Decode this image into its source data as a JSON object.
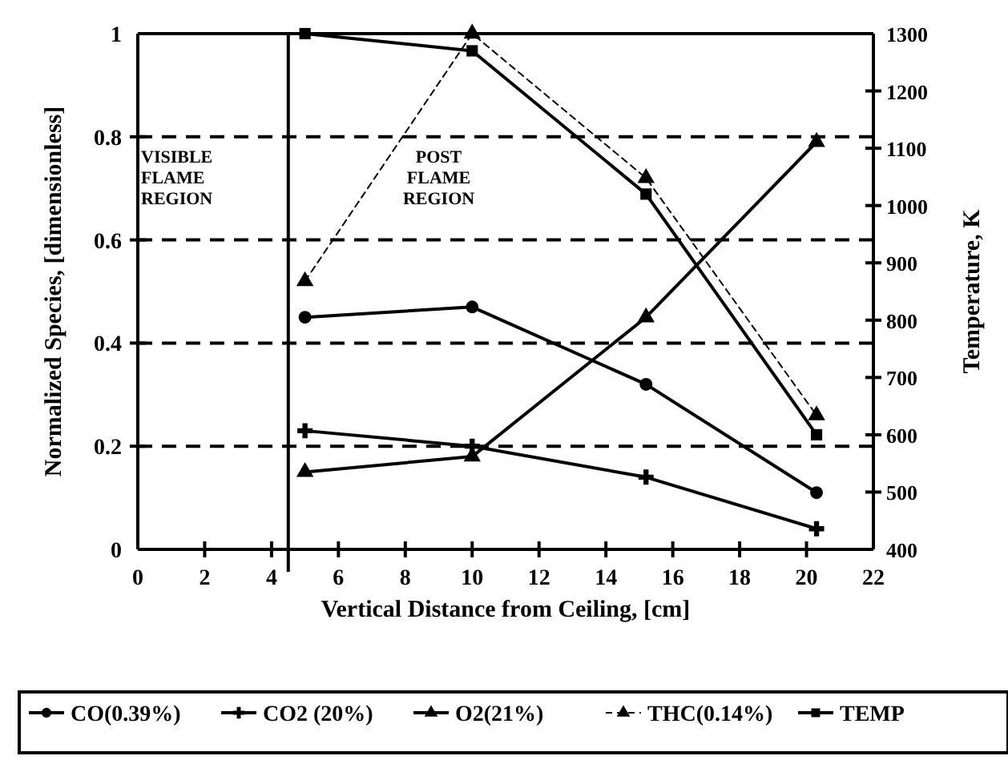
{
  "chart_data": {
    "type": "line",
    "xlabel": "Vertical Distance from Ceiling, [cm]",
    "ylabel": "Normalized Species, [dimensionless]",
    "y2label": "Temperature, K",
    "x": [
      5,
      10,
      15.2,
      20.3
    ],
    "xlim": [
      0,
      22
    ],
    "xticks": [
      0,
      2,
      4,
      6,
      8,
      10,
      12,
      14,
      16,
      18,
      20,
      22
    ],
    "ylim": [
      0,
      1
    ],
    "yticks": [
      0,
      0.2,
      0.4,
      0.6,
      0.8,
      1
    ],
    "y2lim": [
      400,
      1300
    ],
    "y2ticks": [
      400,
      500,
      600,
      700,
      800,
      900,
      1000,
      1100,
      1200,
      1300
    ],
    "grid": "y",
    "legend": "bottom",
    "ref_lines": [
      {
        "axis": "x",
        "value": 4.5,
        "color": "#000000",
        "line_style": "solid"
      }
    ],
    "annotations": [
      "VISIBLE\nFLAME\nREGION",
      "POST\nFLAME\nREGION"
    ],
    "series": [
      {
        "name": "CO(0.39%)",
        "color": "#000000",
        "marker": "circle",
        "line_style": "solid",
        "values": [
          0.45,
          0.47,
          0.32,
          0.11
        ]
      },
      {
        "name": "CO2 (20%)",
        "color": "#000000",
        "marker": "cross",
        "line_style": "solid",
        "values": [
          0.23,
          0.2,
          0.14,
          0.04
        ]
      },
      {
        "name": "O2(21%)",
        "color": "#000000",
        "marker": "triangle",
        "line_style": "solid",
        "values": [
          0.15,
          0.18,
          0.45,
          0.79
        ]
      },
      {
        "name": "THC(0.14%)",
        "color": "#000000",
        "marker": "triangle",
        "line_style": "dashed",
        "values": [
          0.52,
          1.0,
          0.72,
          0.26
        ]
      },
      {
        "name": "TEMP",
        "color": "#000000",
        "marker": "square",
        "line_style": "solid",
        "axis": "y2",
        "values": [
          1300,
          1270,
          1020,
          600
        ]
      }
    ]
  }
}
